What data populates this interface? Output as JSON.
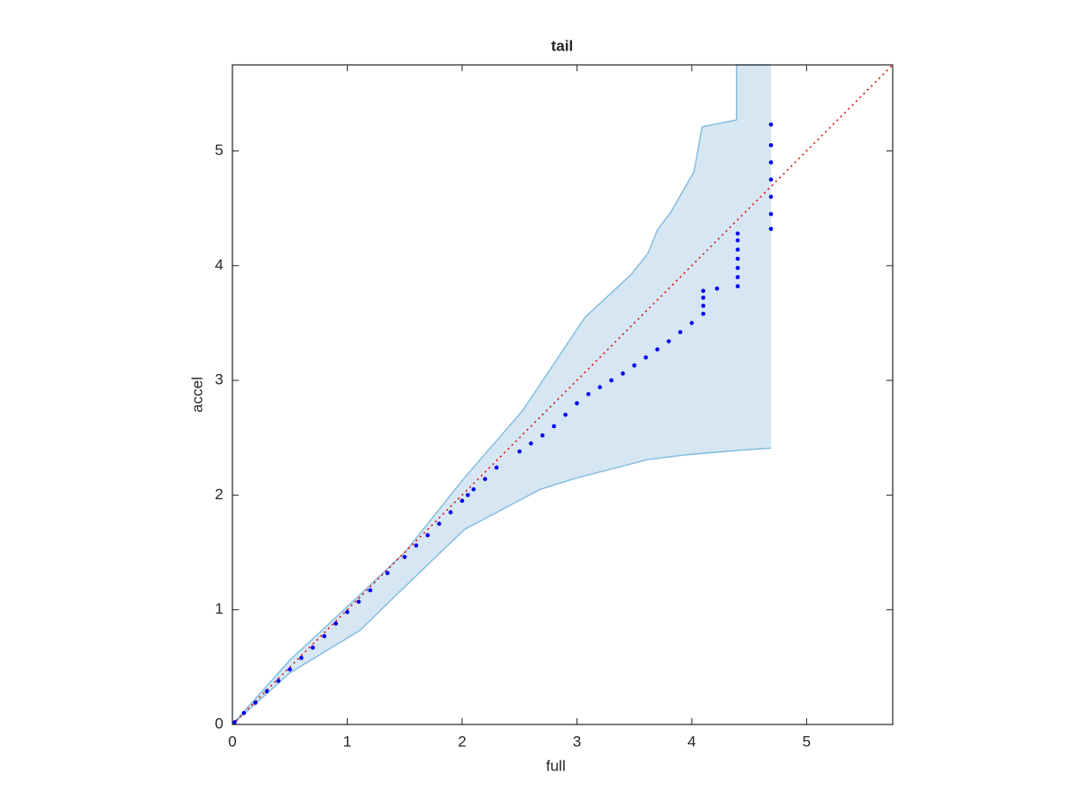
{
  "chart_data": {
    "type": "scatter",
    "title": "tail",
    "x_label": "full",
    "y_label": "accel",
    "x": [
      0.02,
      0.1,
      0.2,
      0.3,
      0.4,
      0.5,
      0.6,
      0.7,
      0.8,
      0.9,
      1.0,
      1.1,
      1.2,
      1.35,
      1.5,
      1.6,
      1.7,
      1.8,
      1.9,
      2.0,
      2.05,
      2.1,
      2.2,
      2.3,
      2.5,
      2.6,
      2.7,
      2.8,
      2.9,
      3.0,
      3.1,
      3.2,
      3.3,
      3.4,
      3.5,
      3.6,
      3.7,
      3.8,
      3.9,
      4.0,
      4.1,
      4.1,
      4.1,
      4.1,
      4.22,
      4.4,
      4.4,
      4.4,
      4.4,
      4.4,
      4.4,
      4.4,
      4.69,
      4.69,
      4.69,
      4.69,
      4.69,
      4.69,
      4.69
    ],
    "y": [
      0.02,
      0.1,
      0.19,
      0.29,
      0.38,
      0.48,
      0.58,
      0.67,
      0.77,
      0.88,
      0.98,
      1.07,
      1.17,
      1.32,
      1.46,
      1.56,
      1.65,
      1.75,
      1.85,
      1.95,
      2.0,
      2.05,
      2.14,
      2.24,
      2.38,
      2.45,
      2.52,
      2.6,
      2.7,
      2.8,
      2.88,
      2.94,
      3.0,
      3.06,
      3.13,
      3.2,
      3.27,
      3.34,
      3.42,
      3.5,
      3.58,
      3.65,
      3.72,
      3.78,
      3.8,
      3.82,
      3.9,
      3.98,
      4.06,
      4.14,
      4.22,
      4.28,
      4.32,
      4.45,
      4.6,
      4.75,
      4.9,
      5.05,
      5.23
    ],
    "color": "#0000ee",
    "band": {
      "color": "#d6e7f3",
      "edge_color": "#86bde0",
      "upper": {
        "x": [
          0,
          0.5,
          1.11,
          1.5,
          2.02,
          2.53,
          3.07,
          3.47,
          3.62,
          3.7,
          3.82,
          4.02,
          4.09,
          4.39,
          4.39,
          4.69
        ],
        "y": [
          0,
          0.56,
          1.13,
          1.5,
          2.15,
          2.74,
          3.55,
          3.92,
          4.11,
          4.31,
          4.47,
          4.82,
          5.21,
          5.27,
          5.75,
          5.75
        ]
      },
      "lower": {
        "x": [
          0,
          0.5,
          1.11,
          1.5,
          2.02,
          2.68,
          3.0,
          3.62,
          3.94,
          4.41,
          4.69
        ],
        "y": [
          0,
          0.45,
          0.82,
          1.2,
          1.7,
          2.05,
          2.15,
          2.31,
          2.35,
          2.39,
          2.41
        ]
      }
    },
    "reference_line": {
      "x": [
        0,
        5.75
      ],
      "y": [
        0,
        5.75
      ],
      "color": "#e00000"
    },
    "xlim": [
      0,
      5.75
    ],
    "ylim": [
      0,
      5.75
    ],
    "xticks": [
      0,
      1,
      2,
      3,
      4,
      5
    ],
    "yticks": [
      0,
      1,
      2,
      3,
      4,
      5
    ]
  }
}
